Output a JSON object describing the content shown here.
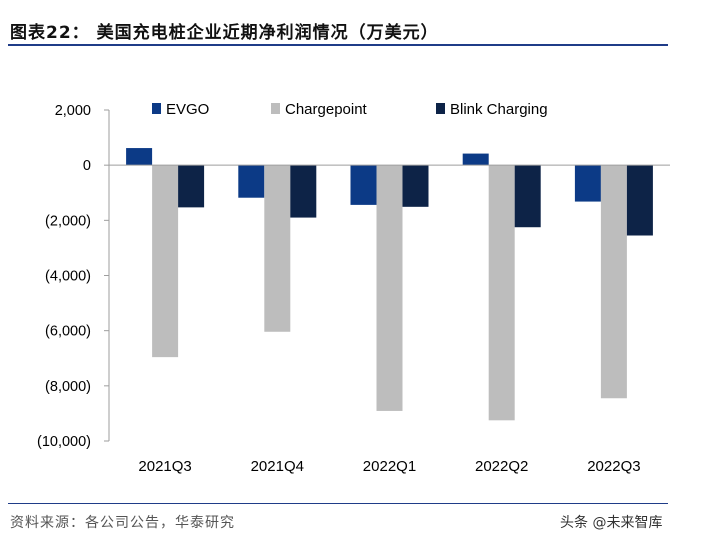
{
  "title": "图表22：  美国充电桩企业近期净利润情况（万美元）",
  "source": "资料来源：各公司公告，华泰研究",
  "watermark": "头条 @未来智库",
  "colors": {
    "EVGO": "#0c3a86",
    "Chargepoint": "#bdbdbd",
    "Blink Charging": "#0d2347",
    "rule": "#1f3c88",
    "axis": "#9e9e9e"
  },
  "chart_data": {
    "type": "bar",
    "title": "美国充电桩企业近期净利润情况（万美元）",
    "xlabel": "",
    "ylabel": "",
    "categories": [
      "2021Q3",
      "2021Q4",
      "2022Q1",
      "2022Q2",
      "2022Q3"
    ],
    "ylim": [
      -10000,
      2000
    ],
    "yticks": [
      2000,
      0,
      -2000,
      -4000,
      -6000,
      -8000,
      -10000
    ],
    "ytick_labels": [
      "2,000",
      "0",
      "(2,000)",
      "(4,000)",
      "(6,000)",
      "(8,000)",
      "(10,000)"
    ],
    "legend_position": "top",
    "series": [
      {
        "name": "EVGO",
        "values": [
          620,
          -1180,
          -1440,
          420,
          -1320
        ]
      },
      {
        "name": "Chargepoint",
        "values": [
          -6960,
          -6040,
          -8910,
          -9250,
          -8450
        ]
      },
      {
        "name": "Blink Charging",
        "values": [
          -1530,
          -1900,
          -1510,
          -2250,
          -2550
        ]
      }
    ]
  }
}
